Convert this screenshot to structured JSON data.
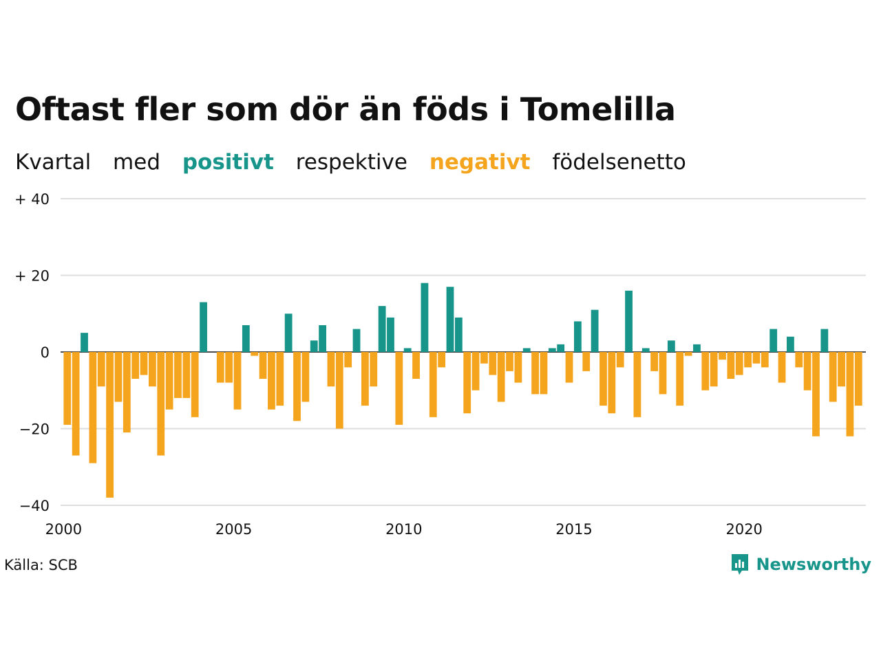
{
  "title": "Oftast fler som dör än föds i Tomelilla",
  "subtitle": {
    "w1": "Kvartal",
    "w2": "med",
    "positive": "positivt",
    "w3": "respektive",
    "negative": "negativt",
    "w4": "födelsenetto"
  },
  "source": "Källa: SCB",
  "brand": "Newsworthy",
  "colors": {
    "positive": "#17958a",
    "negative": "#f5a51d",
    "grid": "#dddddd",
    "zero_line": "#111111",
    "text": "#111111"
  },
  "chart_data": {
    "type": "bar",
    "x_start": "2000 Q1",
    "x_ticks": [
      "2000",
      "2005",
      "2010",
      "2015",
      "2020"
    ],
    "y_ticks": [
      "+ 40",
      "+ 20",
      "0",
      "−20",
      "−40"
    ],
    "y_tick_values": [
      40,
      20,
      0,
      -20,
      -40
    ],
    "ylim": [
      -40,
      40
    ],
    "grid": true,
    "series": [
      {
        "values": [
          -19,
          -27,
          5,
          -29,
          -9,
          -38,
          -13,
          -21,
          -7,
          -6,
          -9,
          -27,
          -15,
          -12,
          -12,
          -17,
          13,
          0,
          -8,
          -8,
          -15,
          7,
          -1,
          -7,
          -15,
          -14,
          10,
          -18,
          -13,
          3,
          7,
          -9,
          -20,
          -4,
          6,
          -14,
          -9,
          12,
          9,
          -19,
          1,
          -7,
          18,
          -17,
          -4,
          17,
          9,
          -16,
          -10,
          -3,
          -6,
          -13,
          -5,
          -8,
          1,
          -11,
          -11,
          1,
          2,
          -8,
          8,
          -5,
          11,
          -14,
          -16,
          -4,
          16,
          -17,
          1,
          -5,
          -11,
          3,
          -14,
          -1,
          2,
          -10,
          -9,
          -2,
          -7,
          -6,
          -4,
          -3,
          -4,
          6,
          -8,
          4,
          -4,
          -10,
          -22,
          6,
          -13,
          -9,
          -22,
          -14
        ]
      }
    ]
  }
}
